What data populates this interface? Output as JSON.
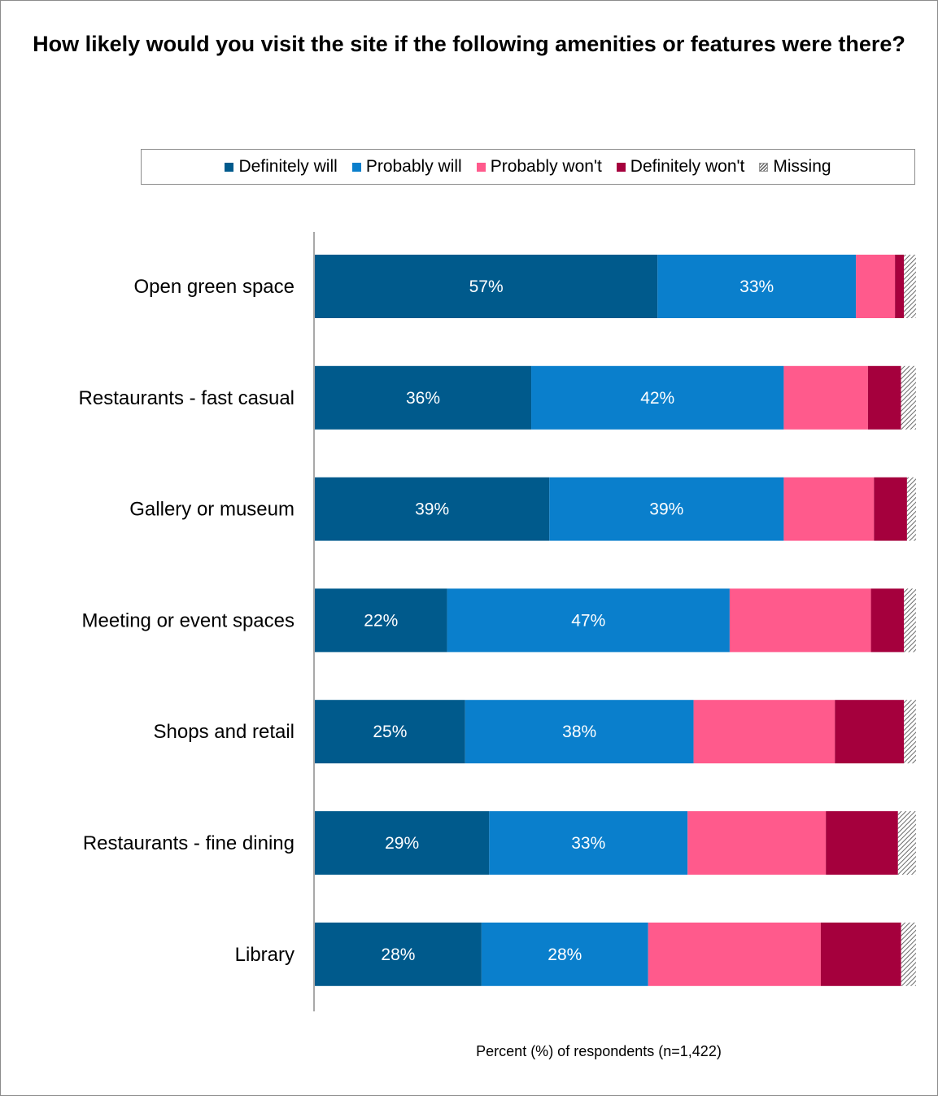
{
  "chart_data": {
    "type": "bar",
    "orientation": "horizontal",
    "stacked": true,
    "title": "How likely would you visit the site if the following amenities or features were there?",
    "xlabel": "Percent (%) of respondents (n=1,422)",
    "ylabel": "",
    "xlim": [
      0,
      100
    ],
    "grid": false,
    "legend_position": "top",
    "categories": [
      "Open green space",
      "Restaurants - fast casual",
      "Gallery or museum",
      "Meeting or event spaces",
      "Shops and retail",
      "Restaurants - fine dining",
      "Library"
    ],
    "series": [
      {
        "name": "Definitely will",
        "color": "#005a8c",
        "values": [
          57,
          36,
          39,
          22,
          25,
          29,
          28
        ],
        "labels": [
          "57%",
          "36%",
          "39%",
          "22%",
          "25%",
          "29%",
          "28%"
        ]
      },
      {
        "name": "Probably will",
        "color": "#0a7fcc",
        "values": [
          33,
          42,
          39,
          47,
          38,
          33,
          28
        ],
        "labels": [
          "33%",
          "42%",
          "39%",
          "47%",
          "38%",
          "33%",
          "28%"
        ]
      },
      {
        "name": "Probably won't",
        "color": "#ff5a8c",
        "values": [
          6.5,
          14,
          15,
          23.5,
          23.5,
          23,
          29
        ],
        "labels": [
          "",
          "",
          "",
          "",
          "",
          "",
          ""
        ]
      },
      {
        "name": "Definitely won't",
        "color": "#a5003d",
        "values": [
          1.5,
          5.5,
          5.5,
          5.5,
          11.5,
          12,
          13.5
        ],
        "labels": [
          "",
          "",
          "",
          "",
          "",
          "",
          ""
        ]
      },
      {
        "name": "Missing",
        "color": "hatch",
        "values": [
          2,
          2.5,
          1.5,
          2,
          2,
          3,
          2.5
        ],
        "labels": [
          "",
          "",
          "",
          "",
          "",
          "",
          ""
        ]
      }
    ]
  }
}
